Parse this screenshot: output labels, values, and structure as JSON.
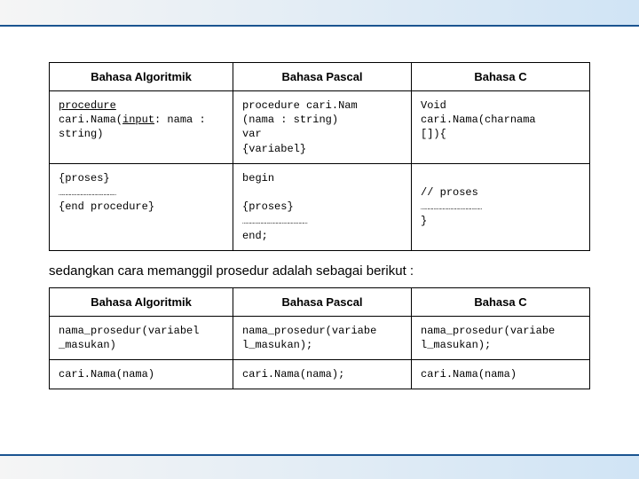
{
  "colors": {
    "border": "#1a5490",
    "bg": "#ffffff",
    "gradient_light": "#f5f5f5",
    "gradient_blue": "#d0e4f5",
    "text": "#000000"
  },
  "table1": {
    "headers": [
      "Bahasa Algoritmik",
      "Bahasa Pascal",
      "Bahasa C"
    ],
    "row1": {
      "c1_line1": "procedure",
      "c1_line2a": "cari.Nama(",
      "c1_line2b": "input",
      "c1_line2c": ": nama :",
      "c1_line3": "string)",
      "c2": "procedure cari.Nam\n(nama : string)\nvar\n{variabel}",
      "c3": "Void\ncari.Nama(charnama\n[]){"
    },
    "row2": {
      "c1a": "{proses}",
      "c1dots": "………………………………………",
      "c1b": "{end procedure}",
      "c2begin": "begin",
      "c2a": "  {proses}",
      "c2dots": "  ……………………………………………",
      "c2b": "end;",
      "c3a": "  // proses",
      "c3dots": "  …………………………………………",
      "c3b": "}"
    }
  },
  "caption": "sedangkan cara memanggil prosedur adalah sebagai berikut :",
  "table2": {
    "headers": [
      "Bahasa Algoritmik",
      "Bahasa Pascal",
      "Bahasa C"
    ],
    "row1": {
      "c1": "nama_prosedur(variabel\n_masukan)",
      "c2": "nama_prosedur(variabe\nl_masukan);",
      "c3": "nama_prosedur(variabe\nl_masukan);"
    },
    "row2": {
      "c1": "cari.Nama(nama)",
      "c2": "cari.Nama(nama);",
      "c3": "cari.Nama(nama)"
    }
  }
}
